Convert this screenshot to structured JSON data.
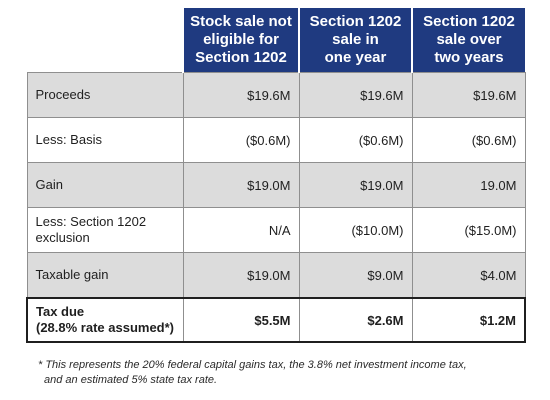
{
  "table": {
    "headers": [
      "",
      "Stock sale not eligible for Section 1202",
      "Section 1202 sale in one year",
      "Section 1202 sale over two years"
    ],
    "header_lines": [
      [
        "Stock sale not",
        "eligible for",
        "Section 1202"
      ],
      [
        "Section 1202",
        "sale in",
        "one year"
      ],
      [
        "Section 1202",
        "sale over",
        "two years"
      ]
    ],
    "rows": [
      {
        "label": "Proceeds",
        "values": [
          "$19.6M",
          "$19.6M",
          "$19.6M"
        ],
        "shaded": true
      },
      {
        "label": "Less: Basis",
        "values": [
          "($0.6M)",
          "($0.6M)",
          "($0.6M)"
        ],
        "shaded": false
      },
      {
        "label": "Gain",
        "values": [
          "$19.0M",
          "$19.0M",
          "19.0M"
        ],
        "shaded": true
      },
      {
        "label_lines": [
          "Less: Section 1202",
          "exclusion"
        ],
        "values": [
          "N/A",
          "($10.0M)",
          "($15.0M)"
        ],
        "shaded": false
      },
      {
        "label": "Taxable gain",
        "values": [
          "$19.0M",
          "$9.0M",
          "$4.0M"
        ],
        "shaded": true
      }
    ],
    "total": {
      "label_lines": [
        "Tax due",
        "(28.8% rate assumed*)"
      ],
      "values": [
        "$5.5M",
        "$2.6M",
        "$1.2M"
      ]
    }
  },
  "footnote_lines": [
    "* This represents the 20% federal capital gains tax, the 3.8% net investment income tax,",
    "and an estimated 5% state tax rate."
  ],
  "colors": {
    "header_bg": "#1f3a80",
    "shaded_row": "#dcdcdc"
  }
}
